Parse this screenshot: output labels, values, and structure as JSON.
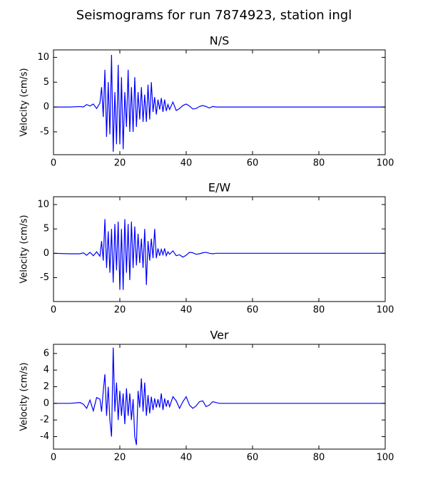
{
  "title": "Seismograms for run 7874923, station ingl",
  "chart_data": [
    {
      "type": "line",
      "title": "N/S",
      "ylabel": "Velocity (cm/s)",
      "color": "#0000ff",
      "xlim": [
        0,
        100
      ],
      "xticks": [
        0,
        20,
        40,
        60,
        80,
        100
      ],
      "ylim": [
        -9.6,
        11.5
      ],
      "yticks": [
        -5,
        0,
        5,
        10
      ],
      "x": [
        0,
        5,
        8,
        9,
        10,
        11,
        12,
        13,
        14,
        14.5,
        15,
        15.5,
        16,
        16.5,
        17,
        17.5,
        18,
        18.5,
        19,
        19.5,
        20,
        20.5,
        21,
        21.5,
        22,
        22.5,
        23,
        23.5,
        24,
        24.5,
        25,
        25.5,
        26,
        26.5,
        27,
        27.5,
        28,
        28.5,
        29,
        29.5,
        30,
        30.5,
        31,
        31.5,
        32,
        32.5,
        33,
        33.5,
        34,
        34.5,
        35,
        36,
        37,
        38,
        39,
        40,
        41,
        42,
        43,
        44,
        45,
        46,
        47,
        48,
        49,
        50,
        55,
        60,
        65,
        70,
        75,
        80,
        85,
        90,
        95,
        100
      ],
      "values": [
        0,
        0,
        0.1,
        0,
        0.5,
        0.2,
        0.6,
        -0.3,
        0.8,
        4,
        -2,
        7.5,
        -6,
        5,
        -5.5,
        10.5,
        -9,
        3,
        -7.5,
        8.5,
        -7.5,
        6,
        -8.5,
        3,
        -4,
        7.5,
        -5,
        4,
        -5,
        6,
        -4,
        3,
        -2.5,
        4,
        -3,
        2.5,
        -3,
        4.5,
        -2.5,
        5,
        -1,
        2,
        -1.5,
        1.5,
        -0.5,
        1.8,
        -1,
        1.5,
        -0.8,
        0.5,
        -0.5,
        1,
        -0.7,
        -0.3,
        0.3,
        0.6,
        0.2,
        -0.4,
        -0.3,
        0.1,
        0.3,
        0.1,
        -0.2,
        0.1,
        0,
        0,
        0,
        0,
        0,
        0,
        0,
        0,
        0,
        0,
        0,
        0
      ]
    },
    {
      "type": "line",
      "title": "E/W",
      "ylabel": "Velocity (cm/s)",
      "color": "#0000ff",
      "xlim": [
        0,
        100
      ],
      "xticks": [
        0,
        20,
        40,
        60,
        80,
        100
      ],
      "ylim": [
        -9.9,
        11.6
      ],
      "yticks": [
        -5,
        0,
        5,
        10
      ],
      "x": [
        0,
        5,
        8,
        9,
        10,
        11,
        12,
        13,
        14,
        14.5,
        15,
        15.5,
        16,
        16.5,
        17,
        17.5,
        18,
        18.5,
        19,
        19.5,
        20,
        20.5,
        21,
        21.5,
        22,
        22.5,
        23,
        23.5,
        24,
        24.5,
        25,
        25.5,
        26,
        26.5,
        27,
        27.5,
        28,
        28.5,
        29,
        29.5,
        30,
        30.5,
        31,
        31.5,
        32,
        32.5,
        33,
        33.5,
        34,
        34.5,
        35,
        36,
        37,
        38,
        39,
        40,
        41,
        42,
        43,
        44,
        45,
        46,
        47,
        48,
        49,
        50,
        55,
        60,
        65,
        70,
        75,
        80,
        85,
        90,
        95,
        100
      ],
      "values": [
        0,
        -0.1,
        -0.1,
        0.1,
        -0.4,
        0.2,
        -0.5,
        0.3,
        -0.6,
        2.5,
        -1.5,
        7,
        -3,
        4.5,
        -4,
        5,
        -6,
        6,
        -3.5,
        6.5,
        -7.5,
        5,
        -7.5,
        7,
        -4,
        6,
        -5.5,
        6.5,
        -3,
        5.5,
        -2.5,
        4,
        -2,
        3,
        -3,
        5,
        -6.5,
        2.5,
        -1.5,
        3,
        -1,
        5,
        -1,
        1,
        -0.5,
        0.8,
        -0.3,
        1,
        -0.5,
        0.3,
        -0.2,
        0.5,
        -0.5,
        -0.3,
        -0.8,
        -0.4,
        0.2,
        0.1,
        -0.2,
        -0.1,
        0.1,
        0.2,
        0,
        -0.1,
        0,
        0,
        0,
        0,
        0,
        0,
        0,
        0,
        0,
        0,
        0,
        0
      ]
    },
    {
      "type": "line",
      "title": "Ver",
      "ylabel": "Velocity (cm/s)",
      "color": "#0000ff",
      "xlim": [
        0,
        100
      ],
      "xticks": [
        0,
        20,
        40,
        60,
        80,
        100
      ],
      "ylim": [
        -5.5,
        7.1
      ],
      "yticks": [
        -4,
        -2,
        0,
        2,
        4,
        6
      ],
      "x": [
        0,
        5,
        8,
        9,
        10,
        11,
        12,
        13,
        14,
        14.5,
        15,
        15.5,
        16,
        16.5,
        17,
        17.5,
        18,
        18.5,
        19,
        19.5,
        20,
        20.5,
        21,
        21.5,
        22,
        22.5,
        23,
        23.5,
        24,
        24.5,
        25,
        25.5,
        26,
        26.5,
        27,
        27.5,
        28,
        28.5,
        29,
        29.5,
        30,
        30.5,
        31,
        31.5,
        32,
        32.5,
        33,
        33.5,
        34,
        34.5,
        35,
        36,
        37,
        38,
        39,
        40,
        41,
        42,
        43,
        44,
        45,
        46,
        47,
        48,
        49,
        50,
        55,
        60,
        65,
        70,
        75,
        80,
        85,
        90,
        95,
        100
      ],
      "values": [
        0,
        0,
        0.1,
        -0.1,
        -0.6,
        0.4,
        -0.9,
        0.7,
        0.5,
        -1,
        1.5,
        3.5,
        -1.5,
        2,
        -2,
        -4,
        6.7,
        -1,
        2.5,
        -2,
        1.5,
        -1.5,
        1.2,
        -2.5,
        1.8,
        -1.5,
        1.2,
        -2,
        0.5,
        -4,
        -5,
        1.5,
        -0.5,
        3,
        -1,
        2.5,
        -1.5,
        1,
        -1.2,
        0.8,
        -0.8,
        0.6,
        -0.5,
        0.5,
        -0.5,
        1.2,
        -0.8,
        0.6,
        -0.4,
        0.4,
        -0.4,
        0.8,
        0.3,
        -0.6,
        0.2,
        0.8,
        -0.2,
        -0.6,
        -0.3,
        0.2,
        0.3,
        -0.4,
        -0.2,
        0.2,
        0.1,
        0,
        0,
        0,
        0,
        0,
        0,
        0,
        0,
        0,
        0,
        0
      ]
    }
  ]
}
